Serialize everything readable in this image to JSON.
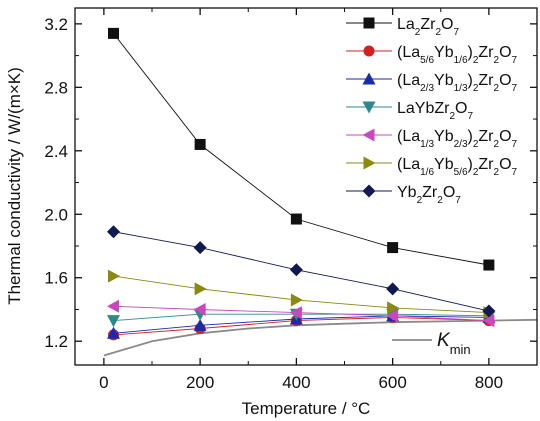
{
  "chart_data": {
    "type": "line",
    "xlabel": "Temperature / °C",
    "ylabel": "Thermal conductivity / W/(m×K)",
    "xlim": [
      -60,
      900
    ],
    "ylim": [
      1.05,
      3.3
    ],
    "xticks": [
      "0",
      "200",
      "400",
      "600",
      "800"
    ],
    "yticks": [
      "1.2",
      "1.6",
      "2.0",
      "2.4",
      "2.8",
      "3.2"
    ],
    "x": [
      20,
      200,
      400,
      600,
      800
    ],
    "grid": false,
    "legend_position": "top-right",
    "series": [
      {
        "name": "La2Zr2O7",
        "legend_main": [
          "La",
          "Zr",
          "O"
        ],
        "legend_sub": [
          "2",
          "2",
          "7"
        ],
        "marker": "square",
        "color": "#111111",
        "values": [
          3.14,
          2.44,
          1.97,
          1.79,
          1.68
        ]
      },
      {
        "name": "(La5/6Yb1/6)2Zr2O7",
        "legend_main": [
          "(La",
          "Yb",
          ")",
          "Zr",
          "O"
        ],
        "legend_sub": [
          "5/6",
          "1/6",
          "2",
          "2",
          "7"
        ],
        "marker": "circle",
        "color": "#d62020",
        "values": [
          1.24,
          1.28,
          1.33,
          1.35,
          1.33
        ]
      },
      {
        "name": "(La2/3Yb1/3)2Zr2O7",
        "legend_main": [
          "(La",
          "Yb",
          ")",
          "Zr",
          "O"
        ],
        "legend_sub": [
          "2/3",
          "1/3",
          "2",
          "2",
          "7"
        ],
        "marker": "triangle-up",
        "color": "#1a2aa8",
        "values": [
          1.25,
          1.3,
          1.34,
          1.36,
          1.35
        ]
      },
      {
        "name": "LaYbZr2O7",
        "legend_main": [
          "LaYbZr",
          "O"
        ],
        "legend_sub": [
          "2",
          "7"
        ],
        "marker": "triangle-down",
        "color": "#2e8a8a",
        "values": [
          1.33,
          1.37,
          1.37,
          1.37,
          1.36
        ]
      },
      {
        "name": "(La1/3Yb2/3)2Zr2O7",
        "legend_main": [
          "(La",
          "Yb",
          ")",
          "Zr",
          "O"
        ],
        "legend_sub": [
          "1/3",
          "2/3",
          "2",
          "2",
          "7"
        ],
        "marker": "triangle-left",
        "color": "#c848c0",
        "values": [
          1.42,
          1.4,
          1.38,
          1.36,
          1.33
        ]
      },
      {
        "name": "(La1/6Yb5/6)2Zr2O7",
        "legend_main": [
          "(La",
          "Yb",
          ")",
          "Zr",
          "O"
        ],
        "legend_sub": [
          "1/6",
          "5/6",
          "2",
          "2",
          "7"
        ],
        "marker": "triangle-right",
        "color": "#8a8a10",
        "values": [
          1.61,
          1.53,
          1.46,
          1.41,
          1.38
        ]
      },
      {
        "name": "Yb2Zr2O7",
        "legend_main": [
          "Yb",
          "Zr",
          "O"
        ],
        "legend_sub": [
          "2",
          "2",
          "7"
        ],
        "marker": "diamond",
        "color": "#101a50",
        "values": [
          1.89,
          1.79,
          1.65,
          1.53,
          1.39
        ]
      }
    ],
    "kmin": {
      "label_main": "K",
      "label_sub": "min",
      "color": "#8a8a8a",
      "x": [
        0,
        100,
        200,
        300,
        400,
        500,
        600,
        700,
        800,
        900
      ],
      "values": [
        1.11,
        1.2,
        1.25,
        1.28,
        1.3,
        1.31,
        1.32,
        1.325,
        1.33,
        1.335
      ]
    }
  }
}
